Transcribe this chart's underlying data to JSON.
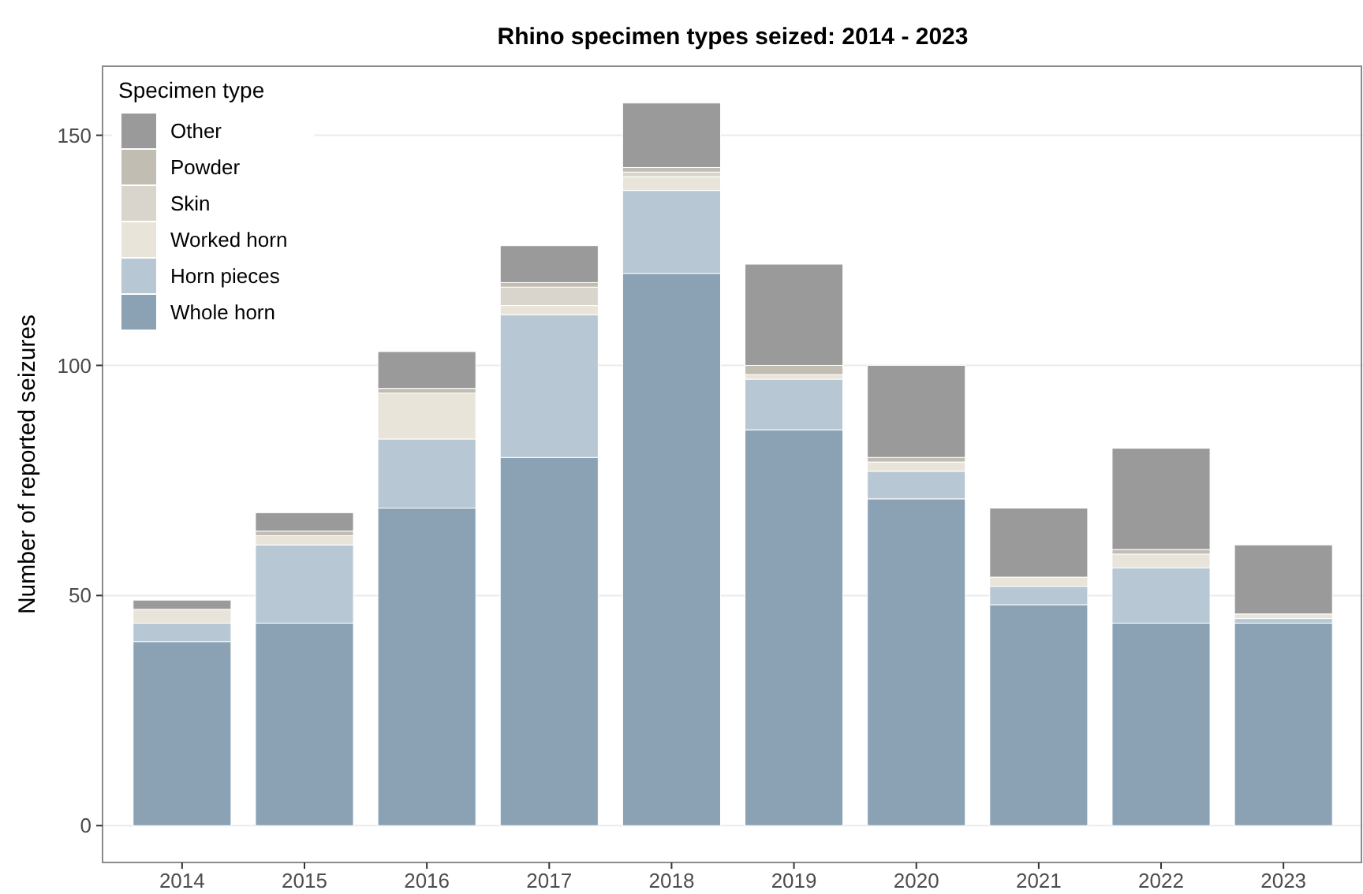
{
  "chart_data": {
    "type": "bar",
    "title": "Rhino specimen types seized: 2014 - 2023",
    "ylabel": "Number of reported seizures",
    "legend_title": "Specimen type",
    "categories": [
      "2014",
      "2015",
      "2016",
      "2017",
      "2018",
      "2019",
      "2020",
      "2021",
      "2022",
      "2023"
    ],
    "stacked": true,
    "legend": "top left",
    "grid": "y",
    "ylim": [
      -8,
      165
    ],
    "yticks": [
      0,
      50,
      100,
      150
    ],
    "series": [
      {
        "name": "Whole horn",
        "color": "#8ba2b5",
        "values": [
          40,
          44,
          69,
          80,
          120,
          86,
          71,
          48,
          44,
          44
        ]
      },
      {
        "name": "Horn pieces",
        "color": "#b7c7d4",
        "values": [
          4,
          17,
          15,
          31,
          18,
          11,
          6,
          4,
          12,
          1
        ]
      },
      {
        "name": "Worked horn",
        "color": "#e8e4da",
        "values": [
          3,
          2,
          10,
          2,
          3,
          1,
          2,
          2,
          3,
          1
        ]
      },
      {
        "name": "Skin",
        "color": "#d9d5cc",
        "values": [
          0,
          0,
          0,
          4,
          1,
          0,
          0,
          0,
          0,
          0
        ]
      },
      {
        "name": "Powder",
        "color": "#c2bdb3",
        "values": [
          0,
          1,
          1,
          1,
          1,
          2,
          1,
          0,
          1,
          0
        ]
      },
      {
        "name": "Other",
        "color": "#9a9a9a",
        "values": [
          2,
          4,
          8,
          8,
          14,
          22,
          20,
          15,
          22,
          15
        ]
      }
    ]
  }
}
